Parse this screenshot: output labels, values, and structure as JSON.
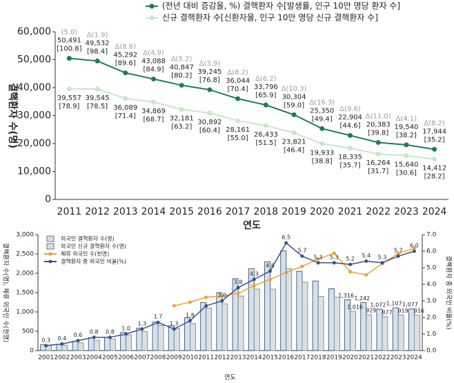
{
  "chart_data": [
    {
      "type": "line",
      "x_label": "연도",
      "y_label": "결핵환자 수(명)",
      "categories": [
        "2011",
        "2012",
        "2013",
        "2014",
        "2015",
        "2016",
        "2017",
        "2018",
        "2019",
        "2020",
        "2021",
        "2022",
        "2023",
        "2024"
      ],
      "ylim": [
        0,
        60000
      ],
      "yticks": [
        0,
        {
          "value": 10000,
          "label": "10,000"
        },
        {
          "value": 20000,
          "label": "20,000"
        },
        {
          "value": 30000,
          "label": "30,000"
        },
        {
          "value": 40000,
          "label": "40,000"
        },
        {
          "value": 50000,
          "label": "50,000"
        },
        {
          "value": 60000,
          "label": "60,000"
        }
      ],
      "series": [
        {
          "name": "(전년 대비 증감율, %) 결핵환자 수[발생률, 인구 10만 명당 환자 수]",
          "color": "#1e7b5b",
          "values": [
            50491,
            49532,
            45292,
            43088,
            40847,
            39245,
            36044,
            33796,
            30304,
            25350,
            22904,
            20383,
            19540,
            17944
          ],
          "value_labels": [
            "50,491",
            "49,532",
            "45,292",
            "43,088",
            "40,847",
            "39,245",
            "36,044",
            "33,796",
            "30,304",
            "25,350",
            "22,904",
            "20,383",
            "19,540",
            "17,944"
          ],
          "rate_labels": [
            "[100.8]",
            "[98.4]",
            "[89.6]",
            "[84.9]",
            "[80.2]",
            "[76.8]",
            "[70.4]",
            "[65.9]",
            "[59.0]",
            "[49.4]",
            "[44.6]",
            "[39.8]",
            "[38.2]",
            "[35.2]"
          ],
          "change_labels": [
            "(5.0)",
            "Δ(1.9)",
            "Δ(8.6)",
            "Δ(4.9)",
            "Δ(5.2)",
            "Δ(3.9)",
            "Δ(8.2)",
            "Δ(6.2)",
            "Δ(10.3)",
            "Δ(16.3)",
            "Δ(9.6)",
            "Δ(11.0)",
            "Δ(4.1)",
            "Δ(8.2)"
          ]
        },
        {
          "name": "신규 결핵환자 수[신환자율, 인구 10만 명당 신규 결핵환자 수]",
          "color": "#c9e6c9",
          "values": [
            39557,
            39545,
            36089,
            34869,
            32181,
            30892,
            28161,
            26433,
            23821,
            19933,
            18335,
            16264,
            15640,
            14412
          ],
          "value_labels": [
            "39,557",
            "39,545",
            "36,089",
            "34,869",
            "32,181",
            "30,892",
            "28,161",
            "26,433",
            "23,821",
            "19,933",
            "18,335",
            "16,264",
            "15,640",
            "14,412"
          ],
          "rate_labels": [
            "[78.9]",
            "[78.5]",
            "[71.4]",
            "[68.7]",
            "[63.2]",
            "[60.4]",
            "[55.0]",
            "[51.5]",
            "[46.4]",
            "[38.8]",
            "[35.7]",
            "[31.7]",
            "[30.6]",
            "[28.2]"
          ]
        }
      ]
    },
    {
      "type": "bar",
      "x_label": "연도",
      "y_label": "결핵환자 수(명), 체류 외국인 수(천명)",
      "y2_label": "결핵환자 중 외국인 비율(%)",
      "categories": [
        "2001",
        "2002",
        "2003",
        "2004",
        "2005",
        "2006",
        "2007",
        "2008",
        "2009",
        "2010",
        "2011",
        "2012",
        "2013",
        "2014",
        "2015",
        "2016",
        "2017",
        "2018",
        "2019",
        "2020",
        "2021",
        "2022",
        "2023",
        "2024"
      ],
      "ylim": [
        0,
        3000
      ],
      "yticks": [
        0,
        500,
        {
          "value": 1000,
          "label": "1,000"
        },
        {
          "value": 1500,
          "label": "1,500"
        },
        {
          "value": 2000,
          "label": "2,000"
        },
        {
          "value": 2500,
          "label": "2,500"
        },
        {
          "value": 3000,
          "label": "3,000"
        }
      ],
      "y2lim": [
        0,
        7
      ],
      "y2ticks": [
        {
          "value": 0,
          "label": "0.0"
        },
        {
          "value": 1,
          "label": "1.0"
        },
        {
          "value": 2,
          "label": "2.0"
        },
        {
          "value": 3,
          "label": "3.0"
        },
        {
          "value": 4,
          "label": "4.0"
        },
        {
          "value": 5,
          "label": "5.0"
        },
        {
          "value": 6,
          "label": "6.0"
        },
        {
          "value": 7,
          "label": "7.0"
        }
      ],
      "series": [
        {
          "name": "외국인 결핵환자 수(명)",
          "type": "bar",
          "color": "#cfe3f2",
          "values": [
            150,
            160,
            240,
            330,
            350,
            470,
            580,
            740,
            640,
            850,
            1240,
            1500,
            1860,
            2120,
            2300,
            2580,
            2050,
            1800,
            1600,
            1316,
            1242,
            1072,
            1107,
            1077
          ],
          "value_labels": [
            null,
            null,
            null,
            null,
            null,
            null,
            null,
            null,
            null,
            null,
            null,
            null,
            null,
            null,
            null,
            null,
            null,
            null,
            null,
            "1,316",
            "1,242",
            "1,072",
            "1,107",
            "1,077"
          ]
        },
        {
          "name": "외국인 신규 결핵환자 수(명)",
          "type": "bar",
          "color": "#dcdfe4",
          "values": [
            130,
            140,
            200,
            270,
            300,
            410,
            490,
            650,
            570,
            700,
            1100,
            1210,
            1410,
            1590,
            1590,
            2120,
            1770,
            1400,
            1380,
            1016,
            929,
            877,
            919,
            916
          ],
          "value_labels": [
            null,
            null,
            null,
            null,
            null,
            null,
            null,
            null,
            null,
            null,
            null,
            null,
            null,
            null,
            null,
            null,
            null,
            null,
            null,
            "1,016",
            "929",
            "877",
            "919",
            "916"
          ]
        },
        {
          "name": "체류 외국인 수(천명)",
          "type": "line",
          "color": "#f0a030",
          "values": [
            null,
            null,
            null,
            null,
            null,
            null,
            null,
            null,
            1160,
            1250,
            1380,
            1410,
            1480,
            1680,
            1840,
            2020,
            2180,
            2370,
            2520,
            2040,
            1960,
            2250,
            2510,
            2650
          ]
        },
        {
          "name": "결핵환자 중 외국인 비율(%)",
          "type": "line",
          "axis": "y2",
          "color": "#3b4f8c",
          "values": [
            0.3,
            0.4,
            0.6,
            0.8,
            0.8,
            1.0,
            1.3,
            1.7,
            1.3,
            1.8,
            2.7,
            3.0,
            3.8,
            4.3,
            4.8,
            6.5,
            5.7,
            5.3,
            5.3,
            5.2,
            5.4,
            5.3,
            5.7,
            6.0
          ],
          "value_labels": [
            "0.3",
            "0.4",
            "0.6",
            "0.8",
            "0.8",
            "1.0",
            "1.3",
            "1.7",
            "1.3",
            "1.8",
            null,
            "3.0",
            "3.8",
            "4.3",
            "4.8",
            "6.5",
            "5.7",
            "5.3",
            "5.3",
            "5.2",
            "5.4",
            "5.3",
            "5.7",
            "6.0"
          ]
        }
      ]
    }
  ]
}
